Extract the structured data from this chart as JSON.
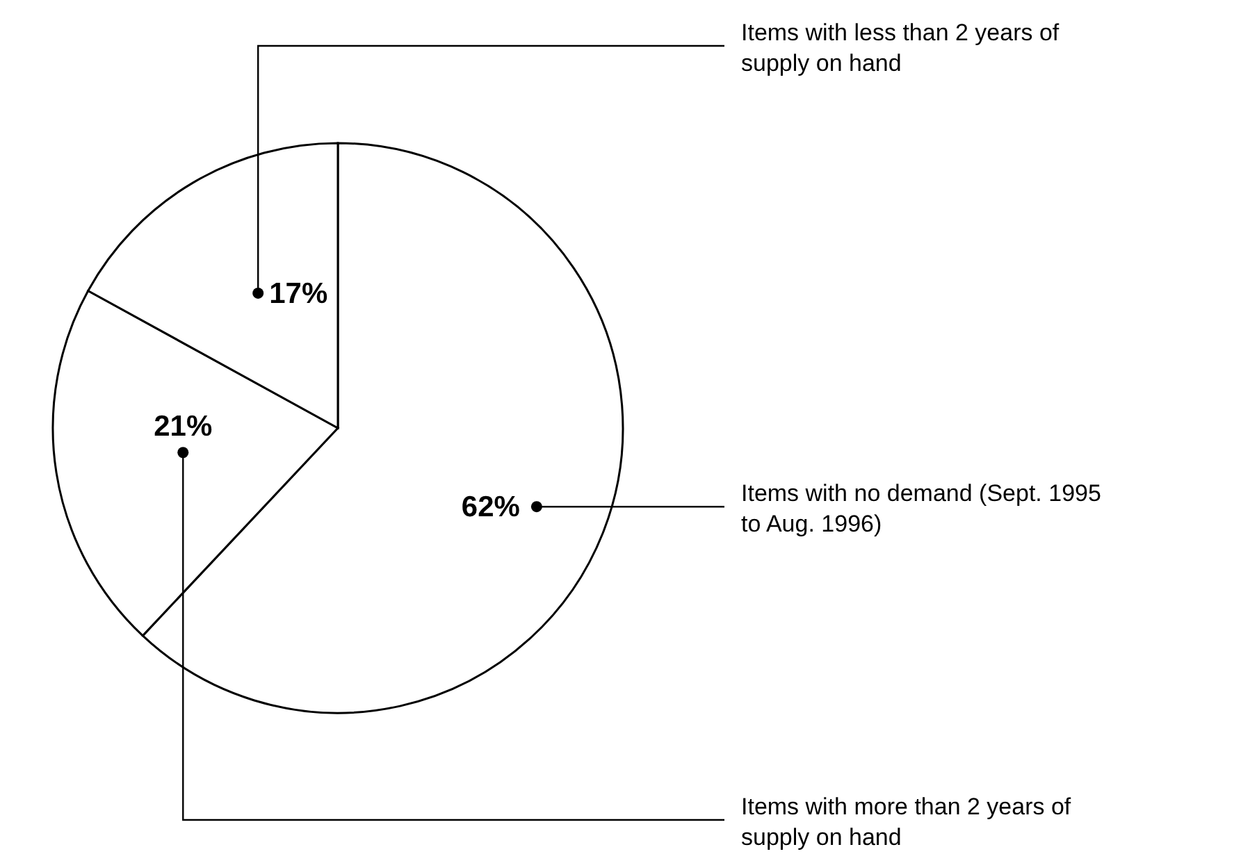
{
  "chart_data": {
    "type": "pie",
    "categories": [
      "Items with no demand (Sept. 1995 to Aug. 1996)",
      "Items with more than 2 years of supply on hand",
      "Items with less than 2 years of supply on hand"
    ],
    "values": [
      62,
      21,
      17
    ],
    "value_labels": [
      "62%",
      "21%",
      "17%"
    ],
    "colors": [
      "#ffffff",
      "#ffffff",
      "#ffffff"
    ]
  }
}
